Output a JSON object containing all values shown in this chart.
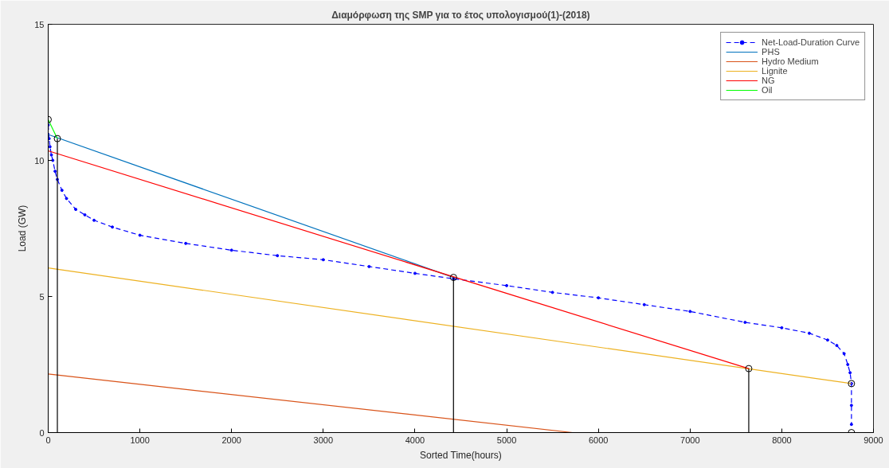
{
  "chart_data": {
    "type": "line",
    "title": "Διαμόρφωση της SMP για το έτος υπολογισμού(1)-(2018)",
    "xlabel": "Sorted Time(hours)",
    "ylabel": "Load (GW)",
    "xlim": [
      0,
      9000
    ],
    "ylim": [
      0,
      15
    ],
    "xticks": [
      0,
      1000,
      2000,
      3000,
      4000,
      5000,
      6000,
      7000,
      8000,
      9000
    ],
    "yticks": [
      0,
      5,
      10,
      15
    ],
    "grid": false,
    "legend": "top right",
    "series": [
      {
        "name": "Net-Load-Duration Curve",
        "color": "#0000ff",
        "line_style": "dashed",
        "marker": "circle",
        "x": [
          0,
          10,
          20,
          35,
          50,
          75,
          100,
          150,
          200,
          300,
          400,
          500,
          700,
          1000,
          1500,
          2000,
          2500,
          3000,
          3500,
          4000,
          4420,
          5000,
          5500,
          6000,
          6500,
          7000,
          7600,
          8000,
          8300,
          8500,
          8600,
          8680,
          8720,
          8745,
          8760,
          8760,
          8760
        ],
        "values": [
          11.3,
          10.8,
          10.5,
          10.2,
          10.0,
          9.6,
          9.3,
          8.9,
          8.6,
          8.2,
          8.0,
          7.8,
          7.55,
          7.25,
          6.95,
          6.7,
          6.5,
          6.35,
          6.1,
          5.85,
          5.65,
          5.4,
          5.15,
          4.95,
          4.7,
          4.45,
          4.05,
          3.85,
          3.65,
          3.4,
          3.2,
          2.9,
          2.5,
          2.2,
          1.8,
          1.0,
          0.3
        ]
      },
      {
        "name": "PHS",
        "color": "#0072bd",
        "x": [
          0,
          4420
        ],
        "values": [
          10.95,
          5.7
        ]
      },
      {
        "name": "Hydro Medium",
        "color": "#d95319",
        "x": [
          0,
          5720
        ],
        "values": [
          2.15,
          0
        ]
      },
      {
        "name": "Lignite",
        "color": "#edb120",
        "x": [
          0,
          8760
        ],
        "values": [
          6.05,
          1.8
        ]
      },
      {
        "name": "NG",
        "color": "#ff0000",
        "x": [
          0,
          7640
        ],
        "values": [
          10.35,
          2.35
        ]
      },
      {
        "name": "Oil",
        "color": "#00ff00",
        "x": [
          0,
          100
        ],
        "values": [
          11.5,
          10.8
        ]
      },
      {
        "color": "#000000",
        "x": [
          100,
          100
        ],
        "values": [
          0,
          10.8
        ]
      },
      {
        "color": "#000000",
        "x": [
          4420,
          4420
        ],
        "values": [
          0,
          5.7
        ]
      },
      {
        "color": "#000000",
        "x": [
          7640,
          7640
        ],
        "values": [
          0,
          2.35
        ]
      },
      {
        "type": "scatter",
        "color": "#000000",
        "marker": "circle",
        "x": [
          0,
          100,
          4420,
          7640,
          8760,
          8760
        ],
        "values": [
          11.5,
          10.8,
          5.7,
          2.35,
          1.8,
          0
        ]
      }
    ]
  }
}
